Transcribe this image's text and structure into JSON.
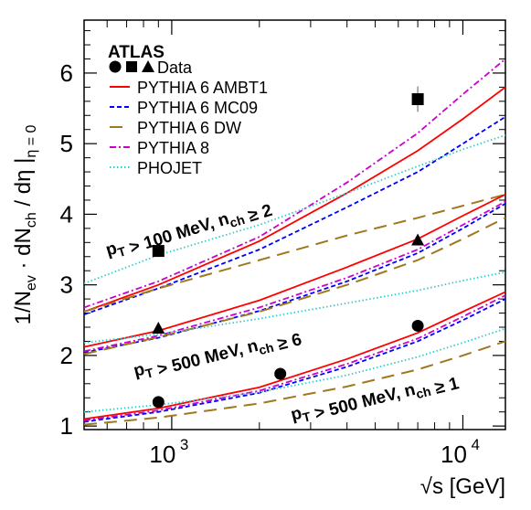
{
  "chart_data": {
    "type": "line",
    "title": "",
    "xlabel": "√s [GeV]",
    "ylabel": "1/N_ev · dN_ch / dη |η = 0",
    "xscale": "log",
    "xlim": [
      500,
      14000
    ],
    "ylim": [
      0.95,
      6.75
    ],
    "grid": false,
    "legend_position": "top-left",
    "x_ticks": [
      1000,
      10000
    ],
    "x_tick_labels": [
      "10",
      "10"
    ],
    "x_tick_exponents": [
      "3",
      "4"
    ],
    "y_ticks": [
      1,
      2,
      3,
      4,
      5,
      6
    ],
    "y_tick_labels": [
      "1",
      "2",
      "3",
      "4",
      "5",
      "6"
    ],
    "experiment_label": "ATLAS",
    "legend": [
      {
        "label": "Data",
        "marker_label": "● ■ ▲",
        "style": "markers",
        "color": "#000000"
      },
      {
        "label": "PYTHIA 6 AMBT1",
        "style": "solid",
        "color": "#ff0000"
      },
      {
        "label": "PYTHIA 6 MC09",
        "style": "dashed",
        "color": "#0000ff"
      },
      {
        "label": "PYTHIA 6 DW",
        "style": "longdash",
        "color": "#a0781e"
      },
      {
        "label": "PYTHIA 8",
        "style": "dashdot",
        "color": "#cc00cc"
      },
      {
        "label": "PHOJET",
        "style": "dotted",
        "color": "#33cccc"
      }
    ],
    "bands": [
      {
        "label": "p_T > 100 MeV, n_ch ≥ 2",
        "marker": "square",
        "data": {
          "x": [
            900,
            7000
          ],
          "y": [
            3.48,
            5.63
          ],
          "yerr": [
            0.05,
            0.18
          ]
        },
        "series": [
          {
            "name": "PYTHIA 6 AMBT1",
            "x": [
              500,
              900,
              2000,
              4000,
              7000,
              10000,
              14000
            ],
            "y": [
              2.62,
              3.0,
              3.62,
              4.3,
              4.9,
              5.35,
              5.8
            ]
          },
          {
            "name": "PYTHIA 6 MC09",
            "x": [
              500,
              900,
              2000,
              4000,
              7000,
              10000,
              14000
            ],
            "y": [
              2.58,
              2.95,
              3.5,
              4.1,
              4.6,
              5.0,
              5.38
            ]
          },
          {
            "name": "PYTHIA 6 DW",
            "x": [
              500,
              900,
              2000,
              4000,
              7000,
              10000,
              14000
            ],
            "y": [
              2.62,
              2.95,
              3.35,
              3.7,
              3.95,
              4.12,
              4.28
            ]
          },
          {
            "name": "PYTHIA 8",
            "x": [
              500,
              900,
              2000,
              4000,
              7000,
              10000,
              14000
            ],
            "y": [
              2.68,
              3.05,
              3.68,
              4.45,
              5.15,
              5.7,
              6.2
            ]
          },
          {
            "name": "PHOJET",
            "x": [
              500,
              900,
              2000,
              4000,
              7000,
              10000,
              14000
            ],
            "y": [
              3.02,
              3.42,
              3.85,
              4.3,
              4.68,
              4.92,
              5.12
            ]
          }
        ]
      },
      {
        "label": "p_T > 500 MeV, n_ch ≥ 6",
        "marker": "triangle",
        "data": {
          "x": [
            900,
            7000
          ],
          "y": [
            2.38,
            3.63
          ],
          "yerr": [
            0.03,
            0.05
          ]
        },
        "series": [
          {
            "name": "PYTHIA 6 AMBT1",
            "x": [
              500,
              900,
              2000,
              4000,
              7000,
              10000,
              14000
            ],
            "y": [
              2.12,
              2.35,
              2.78,
              3.25,
              3.65,
              3.98,
              4.28
            ]
          },
          {
            "name": "PYTHIA 6 MC09",
            "x": [
              500,
              900,
              2000,
              4000,
              7000,
              10000,
              14000
            ],
            "y": [
              2.04,
              2.25,
              2.63,
              3.05,
              3.45,
              3.8,
              4.15
            ]
          },
          {
            "name": "PYTHIA 6 DW",
            "x": [
              500,
              900,
              2000,
              4000,
              7000,
              10000,
              14000
            ],
            "y": [
              2.02,
              2.26,
              2.62,
              3.0,
              3.35,
              3.65,
              3.95
            ]
          },
          {
            "name": "PYTHIA 8",
            "x": [
              500,
              900,
              2000,
              4000,
              7000,
              10000,
              14000
            ],
            "y": [
              2.06,
              2.28,
              2.68,
              3.1,
              3.5,
              3.85,
              4.18
            ]
          },
          {
            "name": "PHOJET",
            "x": [
              500,
              900,
              2000,
              4000,
              7000,
              10000,
              14000
            ],
            "y": [
              2.18,
              2.3,
              2.52,
              2.74,
              2.92,
              3.06,
              3.18
            ]
          }
        ]
      },
      {
        "label": "p_T > 500 MeV, n_ch ≥ 1",
        "marker": "circle",
        "data": {
          "x": [
            900,
            2360,
            7000
          ],
          "y": [
            1.34,
            1.74,
            2.42
          ],
          "yerr": [
            0.03,
            0.03,
            0.04
          ]
        },
        "series": [
          {
            "name": "PYTHIA 6 AMBT1",
            "x": [
              500,
              900,
              2000,
              4000,
              7000,
              10000,
              14000
            ],
            "y": [
              1.1,
              1.25,
              1.55,
              1.95,
              2.32,
              2.62,
              2.9
            ]
          },
          {
            "name": "PYTHIA 6 MC09",
            "x": [
              500,
              900,
              2000,
              4000,
              7000,
              10000,
              14000
            ],
            "y": [
              1.06,
              1.2,
              1.47,
              1.84,
              2.2,
              2.5,
              2.8
            ]
          },
          {
            "name": "PYTHIA 6 DW",
            "x": [
              500,
              900,
              2000,
              4000,
              7000,
              10000,
              14000
            ],
            "y": [
              1.02,
              1.12,
              1.32,
              1.56,
              1.8,
              2.0,
              2.2
            ]
          },
          {
            "name": "PYTHIA 8",
            "x": [
              500,
              900,
              2000,
              4000,
              7000,
              10000,
              14000
            ],
            "y": [
              1.08,
              1.22,
              1.5,
              1.88,
              2.24,
              2.55,
              2.85
            ]
          },
          {
            "name": "PHOJET",
            "x": [
              500,
              900,
              2000,
              4000,
              7000,
              10000,
              14000
            ],
            "y": [
              1.2,
              1.3,
              1.48,
              1.72,
              1.98,
              2.18,
              2.38
            ]
          }
        ]
      }
    ]
  }
}
